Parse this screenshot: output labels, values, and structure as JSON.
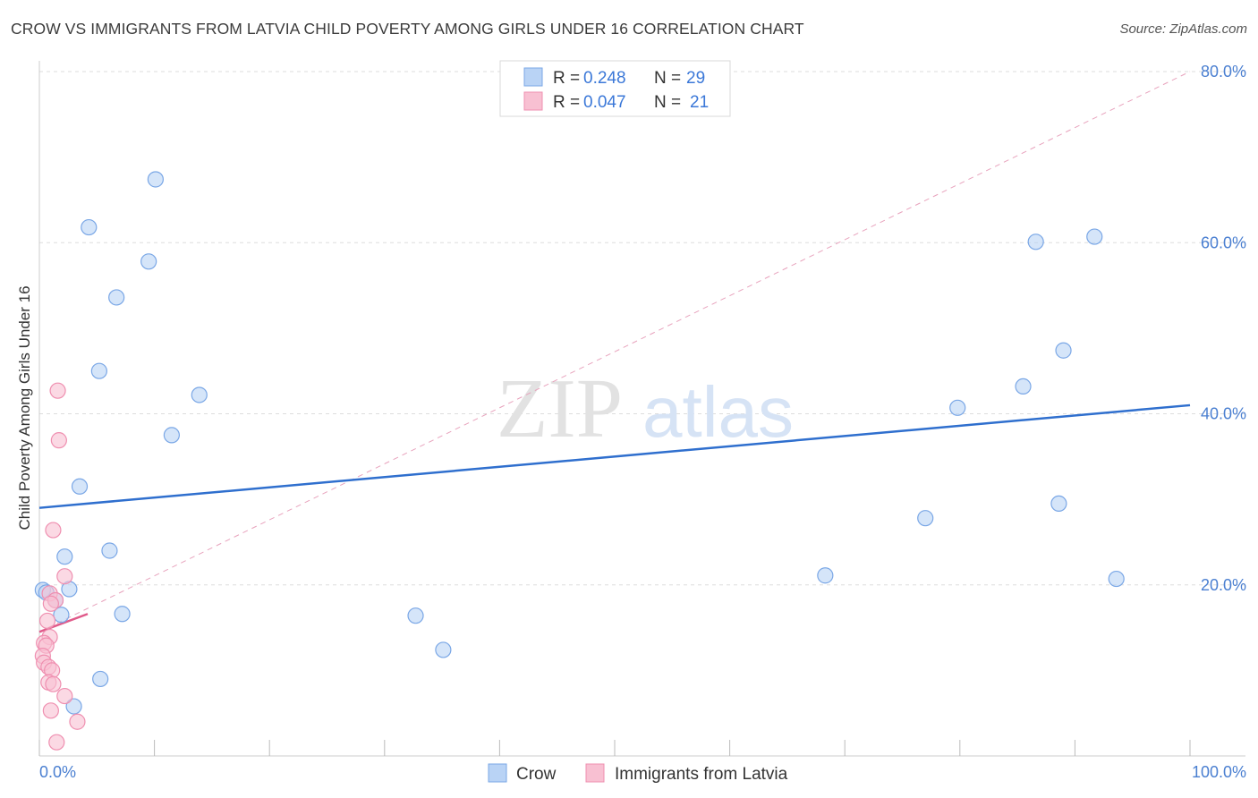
{
  "title": "CROW VS IMMIGRANTS FROM LATVIA CHILD POVERTY AMONG GIRLS UNDER 16 CORRELATION CHART",
  "source": "Source: ZipAtlas.com",
  "watermark": {
    "zip": "ZIP",
    "atlas": "atlas"
  },
  "colors": {
    "crow_fill": "#b9d3f5",
    "crow_stroke": "#7aa7e6",
    "crow_line": "#2f6fce",
    "latvia_fill": "#f8c0d2",
    "latvia_stroke": "#ef8fb0",
    "latvia_line": "#e05a8a",
    "grid": "#dddddd",
    "tick": "#4a7fd1"
  },
  "legend_top": {
    "rows": [
      {
        "r_label": "R =",
        "r_value": "0.248",
        "n_label": "N =",
        "n_value": "29"
      },
      {
        "r_label": "R =",
        "r_value": "0.047",
        "n_label": "N =",
        "n_value": "21"
      }
    ]
  },
  "chart_data": {
    "type": "scatter",
    "title": "CROW VS IMMIGRANTS FROM LATVIA CHILD POVERTY AMONG GIRLS UNDER 16 CORRELATION CHART",
    "xlabel": "",
    "ylabel": "Child Poverty Among Girls Under 16",
    "xlim": [
      0,
      100
    ],
    "ylim": [
      0,
      80
    ],
    "x_tick_labels": [
      "0.0%",
      "100.0%"
    ],
    "y_ticks": [
      20,
      40,
      60,
      80
    ],
    "y_tick_labels": [
      "20.0%",
      "40.0%",
      "60.0%",
      "80.0%"
    ],
    "grid": true,
    "legend_position": "top-center",
    "series": [
      {
        "name": "Crow",
        "points": [
          [
            10.1,
            67.4
          ],
          [
            4.3,
            61.8
          ],
          [
            9.5,
            57.8
          ],
          [
            6.7,
            53.6
          ],
          [
            5.2,
            45.0
          ],
          [
            13.9,
            42.2
          ],
          [
            11.5,
            37.5
          ],
          [
            3.5,
            31.5
          ],
          [
            2.2,
            23.3
          ],
          [
            6.1,
            24.0
          ],
          [
            0.3,
            19.4
          ],
          [
            0.6,
            19.1
          ],
          [
            1.4,
            18.2
          ],
          [
            2.6,
            19.5
          ],
          [
            1.9,
            16.5
          ],
          [
            7.2,
            16.6
          ],
          [
            5.3,
            9.0
          ],
          [
            3.0,
            5.8
          ],
          [
            32.7,
            16.4
          ],
          [
            35.1,
            12.4
          ],
          [
            68.3,
            21.1
          ],
          [
            77.0,
            27.8
          ],
          [
            79.8,
            40.7
          ],
          [
            85.5,
            43.2
          ],
          [
            86.6,
            60.1
          ],
          [
            88.6,
            29.5
          ],
          [
            89.0,
            47.4
          ],
          [
            91.7,
            60.7
          ],
          [
            93.6,
            20.7
          ]
        ],
        "trend": {
          "x": [
            0,
            100
          ],
          "y": [
            29.0,
            41.0
          ]
        }
      },
      {
        "name": "Immigrants from Latvia",
        "points": [
          [
            1.6,
            42.7
          ],
          [
            1.7,
            36.9
          ],
          [
            1.2,
            26.4
          ],
          [
            2.2,
            21.0
          ],
          [
            0.9,
            19.0
          ],
          [
            1.4,
            18.2
          ],
          [
            1.0,
            17.8
          ],
          [
            0.7,
            15.8
          ],
          [
            0.9,
            13.9
          ],
          [
            0.4,
            13.2
          ],
          [
            0.6,
            12.9
          ],
          [
            0.3,
            11.7
          ],
          [
            0.4,
            10.9
          ],
          [
            0.8,
            10.4
          ],
          [
            1.1,
            10.0
          ],
          [
            0.8,
            8.6
          ],
          [
            1.2,
            8.4
          ],
          [
            2.2,
            7.0
          ],
          [
            1.0,
            5.3
          ],
          [
            3.3,
            4.0
          ],
          [
            1.5,
            1.6
          ]
        ],
        "trend": {
          "x": [
            0,
            4.2
          ],
          "y": [
            14.5,
            16.6
          ]
        },
        "trend_extended": {
          "x": [
            0,
            100
          ],
          "y": [
            14.5,
            80.0
          ]
        }
      }
    ]
  }
}
